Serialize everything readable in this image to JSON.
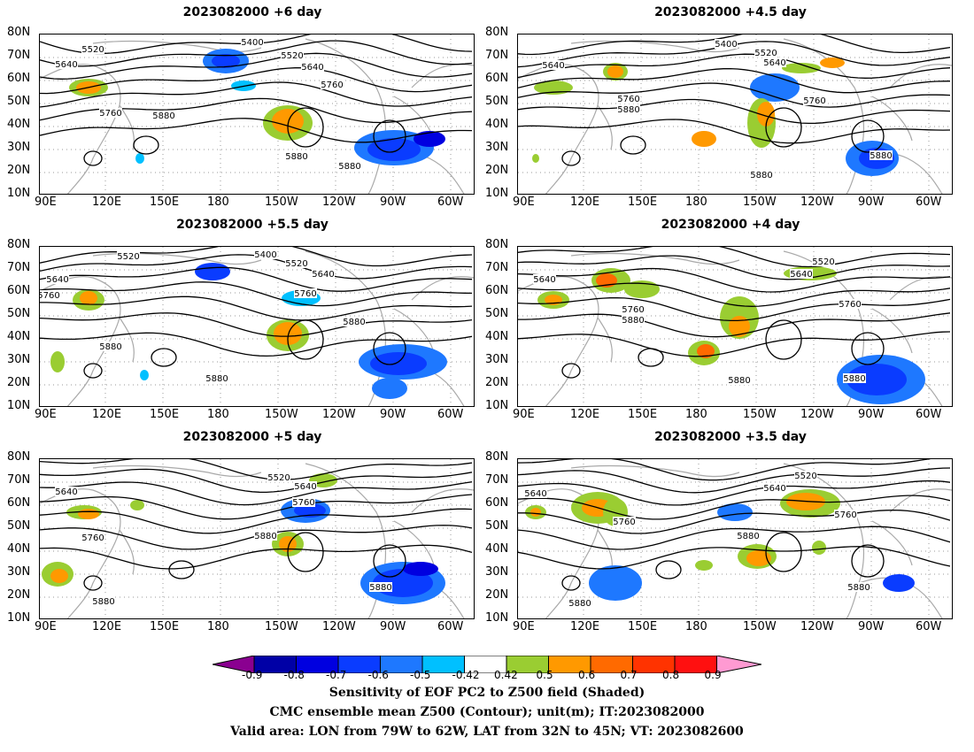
{
  "panels": [
    {
      "id": "p6",
      "title": "2023082000 +6 day"
    },
    {
      "id": "p45",
      "title": "2023082000 +4.5 day"
    },
    {
      "id": "p55",
      "title": "2023082000 +5.5 day"
    },
    {
      "id": "p4",
      "title": "2023082000 +4 day"
    },
    {
      "id": "p5",
      "title": "2023082000 +5 day"
    },
    {
      "id": "p35",
      "title": "2023082000 +3.5 day"
    }
  ],
  "lat_labels": [
    "80N",
    "70N",
    "60N",
    "50N",
    "40N",
    "30N",
    "20N",
    "10N"
  ],
  "lon_labels": [
    "90E",
    "120E",
    "150E",
    "180",
    "150W",
    "120W",
    "90W",
    "60W"
  ],
  "contour_labels": [
    "5400",
    "5520",
    "5640",
    "5760",
    "5880"
  ],
  "colorbar": {
    "ticks": [
      "-0.9",
      "-0.8",
      "-0.7",
      "-0.6",
      "-0.5",
      "-0.42",
      "0.42",
      "0.5",
      "0.6",
      "0.7",
      "0.8",
      "0.9"
    ],
    "colors": [
      "#8a0090",
      "#0000a6",
      "#0000e0",
      "#0a3cff",
      "#1e78ff",
      "#00c0ff",
      "#ffffff",
      "#9acd32",
      "#ff9900",
      "#ff6a00",
      "#ff3300",
      "#ff1010",
      "#ff9ad2"
    ]
  },
  "caption": {
    "line1": "Sensitivity of EOF PC2 to Z500 field (Shaded)",
    "line2": "CMC ensemble mean Z500 (Contour); unit(m); IT:2023082000",
    "line3": "Valid area: LON from 79W to 62W, LAT from 32N to 45N; VT: 2023082600"
  }
}
